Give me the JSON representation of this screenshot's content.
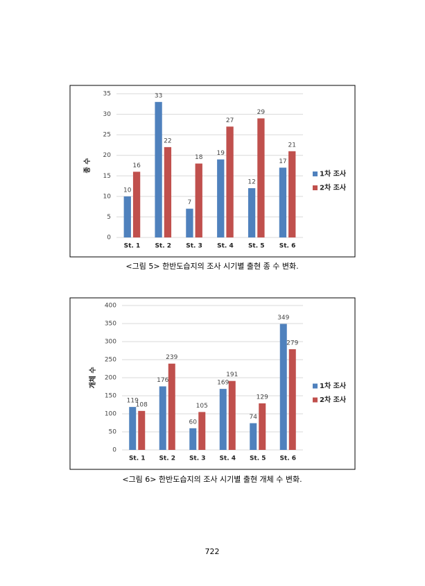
{
  "chart_data": [
    {
      "type": "bar",
      "y_label": "종 수",
      "categories": [
        "St. 1",
        "St. 2",
        "St. 3",
        "St. 4",
        "St. 5",
        "St. 6"
      ],
      "series": [
        {
          "name": "1차 조사",
          "color": "#4f81bd",
          "values": [
            10,
            33,
            7,
            19,
            12,
            17
          ]
        },
        {
          "name": "2차 조사",
          "color": "#c0504d",
          "values": [
            16,
            22,
            18,
            27,
            29,
            21
          ]
        }
      ],
      "ylim": [
        0,
        35
      ],
      "yticks": [
        0,
        5,
        10,
        15,
        20,
        25,
        30,
        35
      ],
      "grid": true,
      "legend": "right"
    },
    {
      "type": "bar",
      "y_label": "개체 수",
      "categories": [
        "St. 1",
        "St. 2",
        "St. 3",
        "St. 4",
        "St. 5",
        "St. 6"
      ],
      "series": [
        {
          "name": "1차 조사",
          "color": "#4f81bd",
          "values": [
            119,
            176,
            60,
            169,
            74,
            349
          ]
        },
        {
          "name": "2차 조사",
          "color": "#c0504d",
          "values": [
            108,
            239,
            105,
            191,
            129,
            279
          ]
        }
      ],
      "ylim": [
        0,
        400
      ],
      "yticks": [
        0,
        50,
        100,
        150,
        200,
        250,
        300,
        350,
        400
      ],
      "grid": true,
      "legend": "right"
    }
  ],
  "captions": [
    "<그림 5> 한반도습지의 조사 시기별 출현 종 수 변화.",
    "<그림 6> 한반도습지의 조사 시기별 출현 개체 수 변화."
  ],
  "page_number": "722"
}
